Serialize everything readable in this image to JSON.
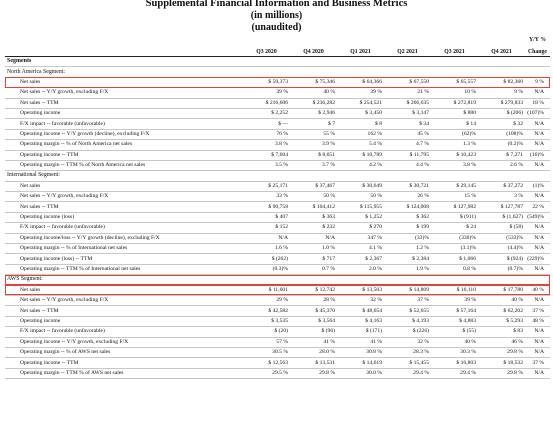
{
  "title": "Supplemental Financial Information and Business Metrics",
  "subtitle": "(in millions)",
  "note": "(unaudited)",
  "columns": [
    "Q3 2020",
    "Q4 2020",
    "Q1 2021",
    "Q2 2021",
    "Q3 2021",
    "Q4 2021"
  ],
  "change_header": [
    "Y/Y %",
    "",
    "Change"
  ],
  "highlight_color": "#e0443a",
  "rows": [
    {
      "type": "section",
      "label": "Segments"
    },
    {
      "type": "group",
      "label": "North America Segment:"
    },
    {
      "type": "row",
      "highlight": true,
      "label": "Net sales",
      "values": [
        "$ 59,373",
        "$ 75,346",
        "$ 64,366",
        "$ 67,550",
        "$ 65,557",
        "$ 82,360"
      ],
      "change": "9 %"
    },
    {
      "type": "row",
      "label": "Net sales -- Y/Y growth, excluding F/X",
      "values": [
        "39 %",
        "40 %",
        "39 %",
        "21 %",
        "10 %",
        "9 %"
      ],
      "change": "N/A"
    },
    {
      "type": "row",
      "label": "Net sales -- TTM",
      "values": [
        "$ 216,606",
        "$ 236,282",
        "$ 254,521",
        "$ 266,635",
        "$ 272,819",
        "$ 279,833"
      ],
      "change": "18 %"
    },
    {
      "type": "row",
      "label": "Operating income",
      "values": [
        "$ 2,252",
        "$ 2,946",
        "$ 3,450",
        "$ 3,147",
        "$ 880",
        "$ (206)"
      ],
      "change": "(107)%"
    },
    {
      "type": "row",
      "label": "F/X impact -- favorable (unfavorable)",
      "values": [
        "$ —",
        "$ 7",
        "$ 8",
        "$ 34",
        "$ 14",
        "$ 32"
      ],
      "change": "N/A"
    },
    {
      "type": "row",
      "label": "Operating income -- Y/Y growth (decline), excluding F/X",
      "values": [
        "76 %",
        "55 %",
        "162 %",
        "45 %",
        "(62)%",
        "(108)%"
      ],
      "change": "N/A"
    },
    {
      "type": "row",
      "label": "Operating margin -- % of North America net sales",
      "values": [
        "3.8 %",
        "3.9 %",
        "5.4 %",
        "4.7 %",
        "1.3 %",
        "(0.2)%"
      ],
      "change": "N/A"
    },
    {
      "type": "row",
      "label": "Operating income -- TTM",
      "values": [
        "$ 7,604",
        "$ 8,651",
        "$ 10,789",
        "$ 11,795",
        "$ 10,423",
        "$ 7,271"
      ],
      "change": "(16)%"
    },
    {
      "type": "row",
      "label": "Operating margin -- TTM % of North America net sales",
      "values": [
        "3.5 %",
        "3.7 %",
        "4.2 %",
        "4.4 %",
        "3.8 %",
        "2.6 %"
      ],
      "change": "N/A"
    },
    {
      "type": "group",
      "label": "International Segment:"
    },
    {
      "type": "row",
      "label": "Net sales",
      "values": [
        "$ 25,171",
        "$ 37,467",
        "$ 30,649",
        "$ 30,721",
        "$ 29,145",
        "$ 37,272"
      ],
      "change": "(1)%"
    },
    {
      "type": "row",
      "label": "Net sales -- Y/Y growth, excluding F/X",
      "values": [
        "33 %",
        "50 %",
        "50 %",
        "26 %",
        "15 %",
        "3 %"
      ],
      "change": "N/A"
    },
    {
      "type": "row",
      "label": "Net sales -- TTM",
      "values": [
        "$ 90,758",
        "$ 104,412",
        "$ 115,955",
        "$ 124,008",
        "$ 127,982",
        "$ 127,787"
      ],
      "change": "22 %"
    },
    {
      "type": "row",
      "label": "Operating income (loss)",
      "values": [
        "$ 407",
        "$ 363",
        "$ 1,252",
        "$ 362",
        "$ (911)",
        "$ (1,627)"
      ],
      "change": "(549)%"
    },
    {
      "type": "row",
      "label": "F/X impact -- favorable (unfavorable)",
      "values": [
        "$ 152",
        "$ 232",
        "$ 270",
        "$ 199",
        "$ 24",
        "$ (58)"
      ],
      "change": "N/A"
    },
    {
      "type": "row",
      "label": "Operating income/loss -- Y/Y growth (decline), excluding F/X",
      "values": [
        "N/A",
        "N/A",
        "347 %",
        "(33)%",
        "(330)%",
        "(533)%"
      ],
      "change": "N/A"
    },
    {
      "type": "row",
      "label": "Operating margin -- % of International net sales",
      "values": [
        "1.6 %",
        "1.0 %",
        "4.1 %",
        "1.2 %",
        "(3.1)%",
        "(4.4)%"
      ],
      "change": "N/A"
    },
    {
      "type": "row",
      "label": "Operating income (loss) -- TTM",
      "values": [
        "$ (262)",
        "$ 717",
        "$ 2,367",
        "$ 2,384",
        "$ 1,066",
        "$ (924)"
      ],
      "change": "(229)%"
    },
    {
      "type": "row",
      "label": "Operating margin -- TTM % of International net sales",
      "values": [
        "(0.3)%",
        "0.7 %",
        "2.0 %",
        "1.9 %",
        "0.8 %",
        "(0.7)%"
      ],
      "change": "N/A"
    },
    {
      "type": "group",
      "highlight": true,
      "label": "AWS Segment:"
    },
    {
      "type": "row",
      "highlight": true,
      "label": "Net sales",
      "values": [
        "$ 11,601",
        "$ 12,742",
        "$ 13,503",
        "$ 14,809",
        "$ 16,110",
        "$ 17,780"
      ],
      "change": "40 %"
    },
    {
      "type": "row",
      "label": "Net sales -- Y/Y growth, excluding F/X",
      "values": [
        "29 %",
        "28 %",
        "32 %",
        "37 %",
        "39 %",
        "40 %"
      ],
      "change": "N/A"
    },
    {
      "type": "row",
      "label": "Net sales -- TTM",
      "values": [
        "$ 42,582",
        "$ 45,370",
        "$ 48,654",
        "$ 52,655",
        "$ 57,164",
        "$ 62,202"
      ],
      "change": "37 %"
    },
    {
      "type": "row",
      "label": "Operating income",
      "values": [
        "$ 3,535",
        "$ 3,564",
        "$ 4,163",
        "$ 4,193",
        "$ 4,883",
        "$ 5,293"
      ],
      "change": "48 %"
    },
    {
      "type": "row",
      "label": "F/X impact -- favorable (unfavorable)",
      "values": [
        "$ (20)",
        "$ (96)",
        "$ (171)",
        "$ (226)",
        "$ (55)",
        "$ 83"
      ],
      "change": "N/A"
    },
    {
      "type": "row",
      "label": "Operating income -- Y/Y growth, excluding F/X",
      "values": [
        "57 %",
        "41 %",
        "41 %",
        "32 %",
        "40 %",
        "46 %"
      ],
      "change": "N/A"
    },
    {
      "type": "row",
      "label": "Operating margin -- % of AWS net sales",
      "values": [
        "30.5 %",
        "28.0 %",
        "30.8 %",
        "28.3 %",
        "30.3 %",
        "29.8 %"
      ],
      "change": "N/A"
    },
    {
      "type": "row",
      "label": "Operating income -- TTM",
      "values": [
        "$ 12,563",
        "$ 13,531",
        "$ 14,619",
        "$ 15,455",
        "$ 16,803",
        "$ 18,532"
      ],
      "change": "37 %"
    },
    {
      "type": "row",
      "label": "Operating margin -- TTM % of AWS net sales",
      "values": [
        "29.5 %",
        "29.8 %",
        "30.0 %",
        "29.4 %",
        "29.4 %",
        "29.8 %"
      ],
      "change": "N/A"
    }
  ]
}
